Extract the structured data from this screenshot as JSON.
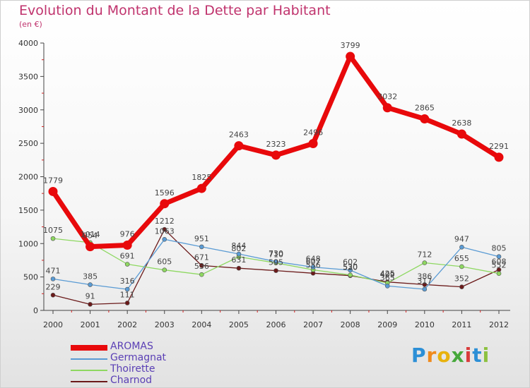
{
  "title": "Evolution du Montant de la Dette par Habitant",
  "unit_note": "(en €)",
  "logo_text": "Proxiti",
  "chart_data": {
    "type": "line",
    "title": "Evolution du Montant de la Dette par Habitant",
    "ylabel": "(en €)",
    "xlabel": "",
    "x": [
      "2000",
      "2001",
      "2002",
      "2003",
      "2004",
      "2005",
      "2006",
      "2007",
      "2008",
      "2009",
      "2010",
      "2011",
      "2012"
    ],
    "ylim": [
      0,
      4000
    ],
    "yticks": [
      "0",
      "500",
      "1000",
      "1500",
      "2000",
      "2500",
      "3000",
      "3500",
      "4000"
    ],
    "ytick_values": [
      0,
      500,
      1000,
      1500,
      2000,
      2500,
      3000,
      3500,
      4000
    ],
    "grid": false,
    "legend_position": "bottom-left",
    "series": [
      {
        "name": "AROMAS",
        "color": "#e8090b",
        "values": [
          1779,
          954,
          976,
          1596,
          1825,
          2463,
          2323,
          2496,
          3799,
          3032,
          2865,
          2638,
          2291
        ]
      },
      {
        "name": "Germagnat",
        "color": "#5a9bd4",
        "values": [
          471,
          385,
          316,
          1063,
          951,
          844,
          730,
          648,
          602,
          365,
          317,
          947,
          805
        ]
      },
      {
        "name": "Thoirette",
        "color": "#8ed861",
        "values": [
          1075,
          1014,
          691,
          605,
          536,
          802,
          710,
          607,
          530,
          409,
          712,
          655,
          552
        ]
      },
      {
        "name": "Charnod",
        "color": "#6b1a1a",
        "values": [
          229,
          91,
          111,
          1212,
          671,
          631,
          595,
          556,
          520,
          425,
          386,
          352,
          608
        ]
      }
    ]
  }
}
